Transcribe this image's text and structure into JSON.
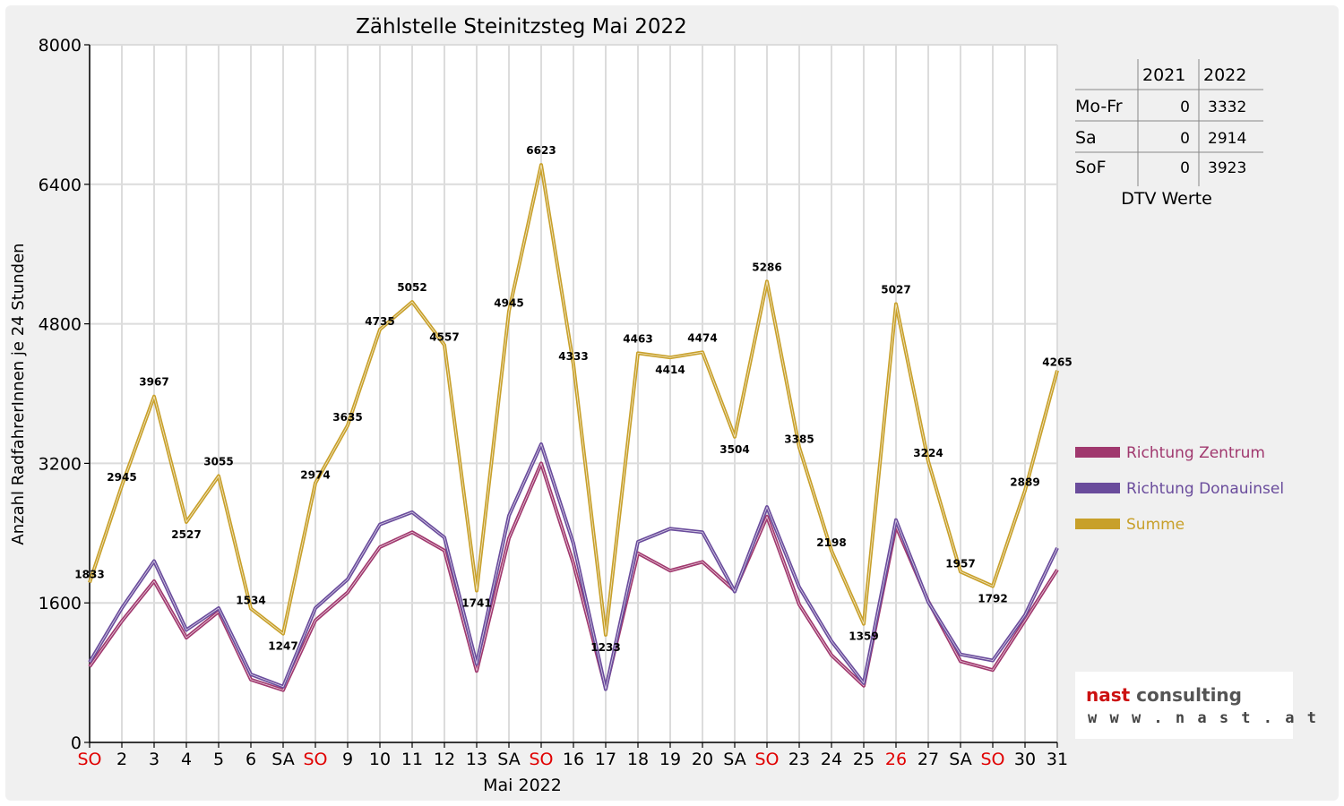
{
  "chart_data": {
    "type": "line",
    "title": "Zählstelle Steinitzsteg Mai 2022",
    "xlabel": "Mai 2022",
    "ylabel": "Anzahl RadfahrerInnen je 24 Stunden",
    "ylim": [
      0,
      8000
    ],
    "yticks": [
      "0",
      "1600",
      "3200",
      "4800",
      "6400",
      "8000"
    ],
    "grid": true,
    "legend_position": "right",
    "categories": [
      "SO",
      "2",
      "3",
      "4",
      "5",
      "6",
      "SA",
      "SO",
      "9",
      "10",
      "11",
      "12",
      "13",
      "SA",
      "SO",
      "16",
      "17",
      "18",
      "19",
      "20",
      "SA",
      "SO",
      "23",
      "24",
      "25",
      "26",
      "27",
      "SA",
      "SO",
      "30",
      "31"
    ],
    "red_categories": [
      0,
      7,
      14,
      21,
      25,
      28
    ],
    "series": [
      {
        "name": "Richtung Zentrum",
        "color": "#a0386e",
        "values": [
          870,
          1390,
          1850,
          1200,
          1500,
          720,
          600,
          1400,
          1720,
          2240,
          2410,
          2200,
          820,
          2340,
          3200,
          2050,
          620,
          2170,
          1970,
          2070,
          1740,
          2590,
          1580,
          1000,
          650,
          2480,
          1620,
          930,
          830,
          1400,
          1980
        ]
      },
      {
        "name": "Richtung Donauinsel",
        "color": "#6a4c9c",
        "values": [
          920,
          1540,
          2080,
          1290,
          1540,
          780,
          640,
          1540,
          1870,
          2500,
          2640,
          2350,
          900,
          2600,
          3420,
          2280,
          610,
          2300,
          2450,
          2410,
          1730,
          2700,
          1780,
          1160,
          680,
          2550,
          1610,
          1010,
          940,
          1460,
          2230
        ]
      },
      {
        "name": "Summe",
        "color": "#c8a02a",
        "values": [
          1833,
          2945,
          3967,
          2527,
          3055,
          1534,
          1247,
          2974,
          3635,
          4735,
          5052,
          4557,
          1741,
          4945,
          6623,
          4333,
          1233,
          4463,
          4414,
          4474,
          3504,
          5286,
          3385,
          2198,
          1359,
          5027,
          3224,
          1957,
          1792,
          2889,
          4265
        ]
      }
    ]
  },
  "dtv": {
    "headers": [
      "2021",
      "2022"
    ],
    "rows": [
      {
        "label": "Mo-Fr",
        "v2021": "0",
        "v2022": "3332"
      },
      {
        "label": "Sa",
        "v2021": "0",
        "v2022": "2914"
      },
      {
        "label": "SoF",
        "v2021": "0",
        "v2022": "3923"
      }
    ],
    "caption": "DTV Werte"
  },
  "logo": {
    "word1": "nast",
    "word2": "consulting",
    "url": "w w w . n a s t . a t"
  }
}
